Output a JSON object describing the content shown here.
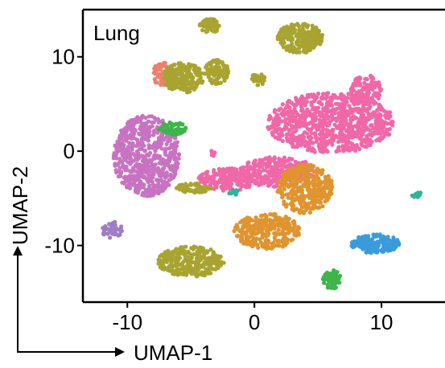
{
  "chart_data": {
    "type": "scatter",
    "panel_label": "Lung",
    "xlabel": "UMAP-1",
    "ylabel": "UMAP-2",
    "xlim": [
      -13.5,
      15
    ],
    "ylim": [
      -16,
      15
    ],
    "x_ticks": [
      -10,
      0,
      10
    ],
    "y_ticks": [
      10,
      0,
      -10
    ],
    "x_tick_labels": [
      "-10",
      "0",
      "10"
    ],
    "y_tick_labels": [
      "10",
      "0",
      "-10"
    ],
    "grid": false,
    "legend": "none",
    "colors": {
      "olive": "#A9A431",
      "pink": "#F068A8",
      "magenta": "#C873C1",
      "orange": "#E0942F",
      "green": "#3DB54A",
      "salmon": "#F0806A",
      "blue": "#3A9BDC",
      "teal": "#2BB59B",
      "lavender": "#A07CC5"
    },
    "clusters": [
      {
        "color": "olive",
        "cx": -3.5,
        "cy": 13.3,
        "rx": 0.8,
        "ry": 0.8,
        "n": 70
      },
      {
        "color": "olive",
        "cx": 3.6,
        "cy": 12.0,
        "rx": 1.8,
        "ry": 1.6,
        "n": 220
      },
      {
        "color": "salmon",
        "cx": -7.2,
        "cy": 8.2,
        "rx": 0.9,
        "ry": 1.2,
        "n": 70
      },
      {
        "color": "olive",
        "cx": -5.6,
        "cy": 7.8,
        "rx": 1.6,
        "ry": 1.6,
        "n": 200
      },
      {
        "color": "olive",
        "cx": -3.0,
        "cy": 8.4,
        "rx": 1.0,
        "ry": 1.3,
        "n": 90
      },
      {
        "color": "olive",
        "cx": 0.3,
        "cy": 7.6,
        "rx": 0.6,
        "ry": 0.6,
        "n": 30
      },
      {
        "color": "magenta",
        "cx": -8.5,
        "cy": -0.5,
        "rx": 2.6,
        "ry": 4.3,
        "n": 650
      },
      {
        "color": "green",
        "cx": -6.5,
        "cy": 2.4,
        "rx": 1.1,
        "ry": 0.7,
        "n": 60
      },
      {
        "color": "pink",
        "cx": 6.0,
        "cy": 3.0,
        "rx": 5.0,
        "ry": 3.2,
        "n": 850
      },
      {
        "color": "pink",
        "cx": 8.8,
        "cy": 6.5,
        "rx": 1.2,
        "ry": 1.6,
        "n": 120
      },
      {
        "color": "pink",
        "cx": 1.8,
        "cy": -2.2,
        "rx": 3.0,
        "ry": 1.6,
        "n": 300
      },
      {
        "color": "pink",
        "cx": -2.0,
        "cy": -3.0,
        "rx": 2.4,
        "ry": 1.2,
        "n": 200
      },
      {
        "color": "olive",
        "cx": -4.8,
        "cy": -3.9,
        "rx": 1.4,
        "ry": 0.5,
        "n": 70
      },
      {
        "color": "orange",
        "cx": 4.0,
        "cy": -4.0,
        "rx": 2.2,
        "ry": 2.6,
        "n": 330
      },
      {
        "color": "orange",
        "cx": 1.0,
        "cy": -8.5,
        "rx": 2.6,
        "ry": 1.9,
        "n": 300
      },
      {
        "color": "teal",
        "cx": -1.5,
        "cy": -4.4,
        "rx": 0.5,
        "ry": 0.3,
        "n": 14
      },
      {
        "color": "olive",
        "cx": -5.0,
        "cy": -11.7,
        "rx": 2.6,
        "ry": 1.6,
        "n": 340
      },
      {
        "color": "lavender",
        "cx": -11.2,
        "cy": -8.3,
        "rx": 0.8,
        "ry": 0.9,
        "n": 45
      },
      {
        "color": "blue",
        "cx": 9.5,
        "cy": -9.8,
        "rx": 1.9,
        "ry": 1.0,
        "n": 190
      },
      {
        "color": "green",
        "cx": 6.1,
        "cy": -13.6,
        "rx": 0.7,
        "ry": 1.0,
        "n": 70
      },
      {
        "color": "teal",
        "cx": 12.8,
        "cy": -4.6,
        "rx": 0.6,
        "ry": 0.3,
        "n": 14
      },
      {
        "color": "pink",
        "cx": -3.3,
        "cy": -0.2,
        "rx": 0.3,
        "ry": 0.3,
        "n": 10
      }
    ]
  }
}
